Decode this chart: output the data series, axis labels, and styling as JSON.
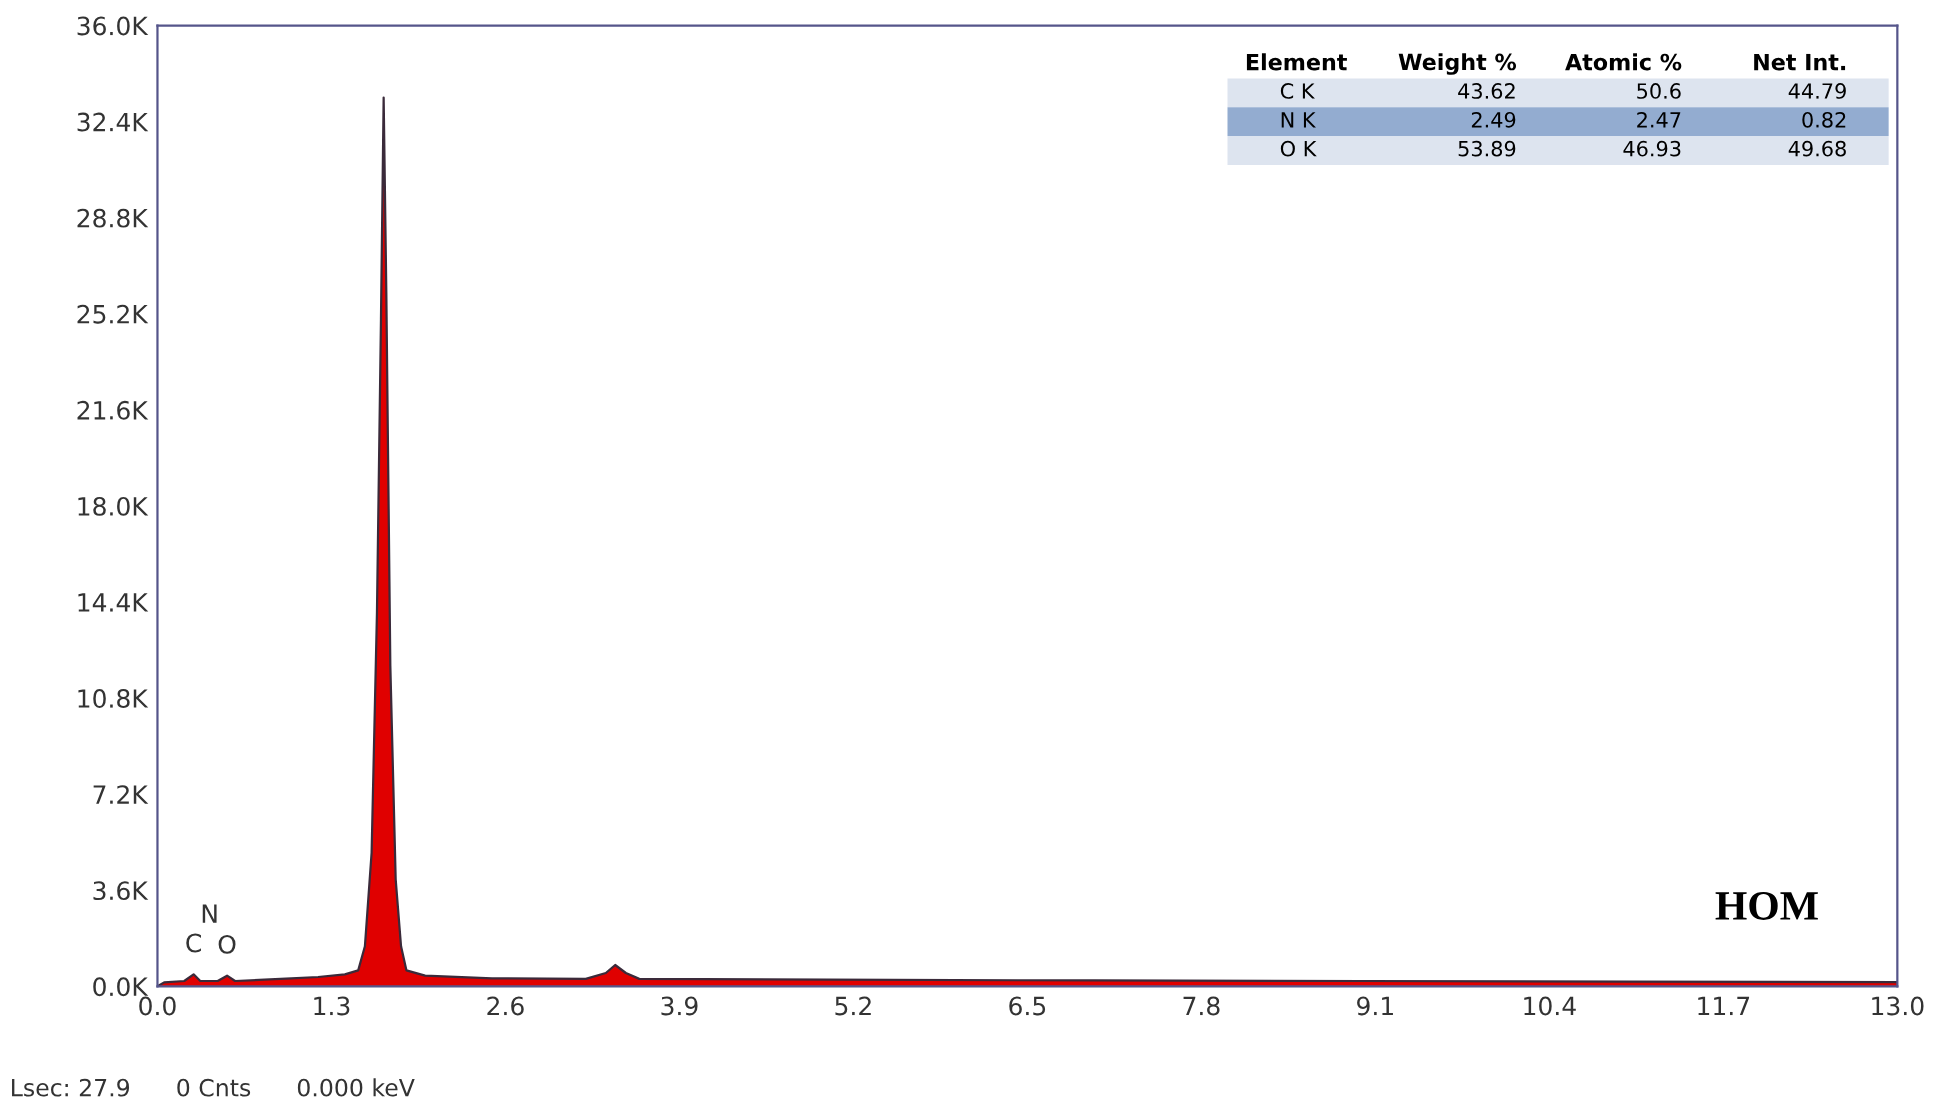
{
  "chart_data": {
    "type": "area",
    "x": [
      0.0,
      0.05,
      0.2,
      0.27,
      0.32,
      0.45,
      0.52,
      0.58,
      0.8,
      1.0,
      1.2,
      1.4,
      1.5,
      1.55,
      1.6,
      1.64,
      1.67,
      1.69,
      1.71,
      1.74,
      1.78,
      1.82,
      1.86,
      2.0,
      2.5,
      3.2,
      3.35,
      3.42,
      3.5,
      3.6,
      5.0,
      7.0,
      9.0,
      11.0,
      13.0
    ],
    "series": [
      {
        "color": "#e00000",
        "values": [
          0,
          150,
          200,
          450,
          200,
          200,
          400,
          200,
          250,
          300,
          350,
          450,
          600,
          1500,
          5000,
          14000,
          25000,
          33300,
          26000,
          12000,
          4000,
          1500,
          600,
          400,
          300,
          280,
          500,
          800,
          500,
          280,
          250,
          220,
          200,
          180,
          160
        ]
      }
    ],
    "xlim": [
      0,
      13
    ],
    "xticks": [
      {
        "value": 0,
        "label": "0.0"
      },
      1.3,
      2.6,
      3.9,
      5.2,
      6.5,
      7.8,
      9.1,
      10.4,
      11.7,
      {
        "value": 13,
        "label": "13.0"
      }
    ],
    "ylim": [
      0,
      36000
    ],
    "yticks": [
      {
        "value": 0,
        "label": "0.0K"
      },
      {
        "value": 3600,
        "label": "3.6K"
      },
      {
        "value": 7200,
        "label": "7.2K"
      },
      {
        "value": 10800,
        "label": "10.8K"
      },
      {
        "value": 14400,
        "label": "14.4K"
      },
      {
        "value": 18000,
        "label": "18.0K"
      },
      {
        "value": 21600,
        "label": "21.6K"
      },
      {
        "value": 25200,
        "label": "25.2K"
      },
      {
        "value": 28800,
        "label": "28.8K"
      },
      {
        "value": 32400,
        "label": "32.4K"
      },
      {
        "value": 36000,
        "label": "36.0K"
      }
    ],
    "grid": false,
    "annotations": [
      {
        "text": "C",
        "x": 0.27,
        "y": 450
      },
      {
        "text": "N",
        "x": 0.39,
        "y": 300
      },
      {
        "text": "O",
        "x": 0.52,
        "y": 400
      },
      "Element\tWeight %\tAtomic %\tNet Int.\nC K\t43.62\t50.6\t44.79\nN K\t2.49\t2.47\t0.82\nO K\t53.89\t46.93\t49.68",
      "HOM",
      "Lsec: 27.9      0 Cnts      0.000 keV"
    ]
  }
}
